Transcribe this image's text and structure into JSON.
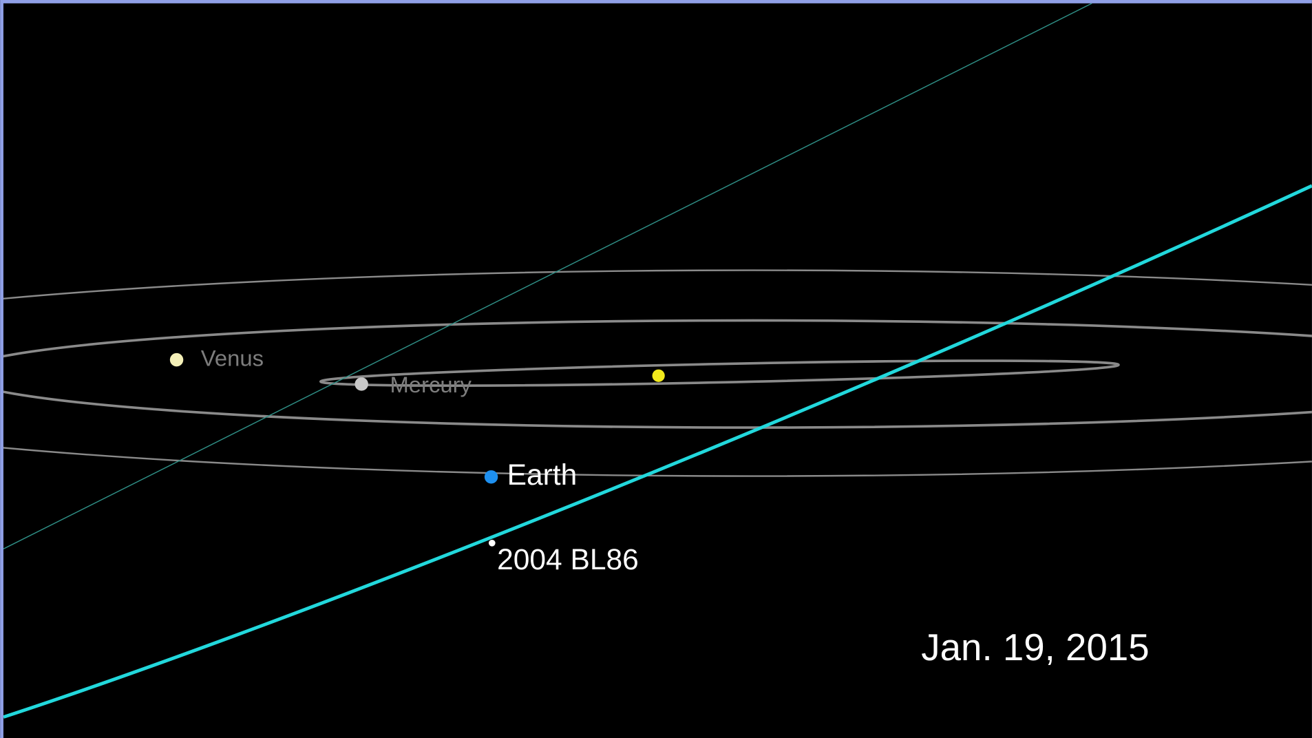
{
  "labels": {
    "venus": "Venus",
    "mercury": "Mercury",
    "earth": "Earth",
    "asteroid": "2004 BL86"
  },
  "date": "Jan. 19, 2015"
}
